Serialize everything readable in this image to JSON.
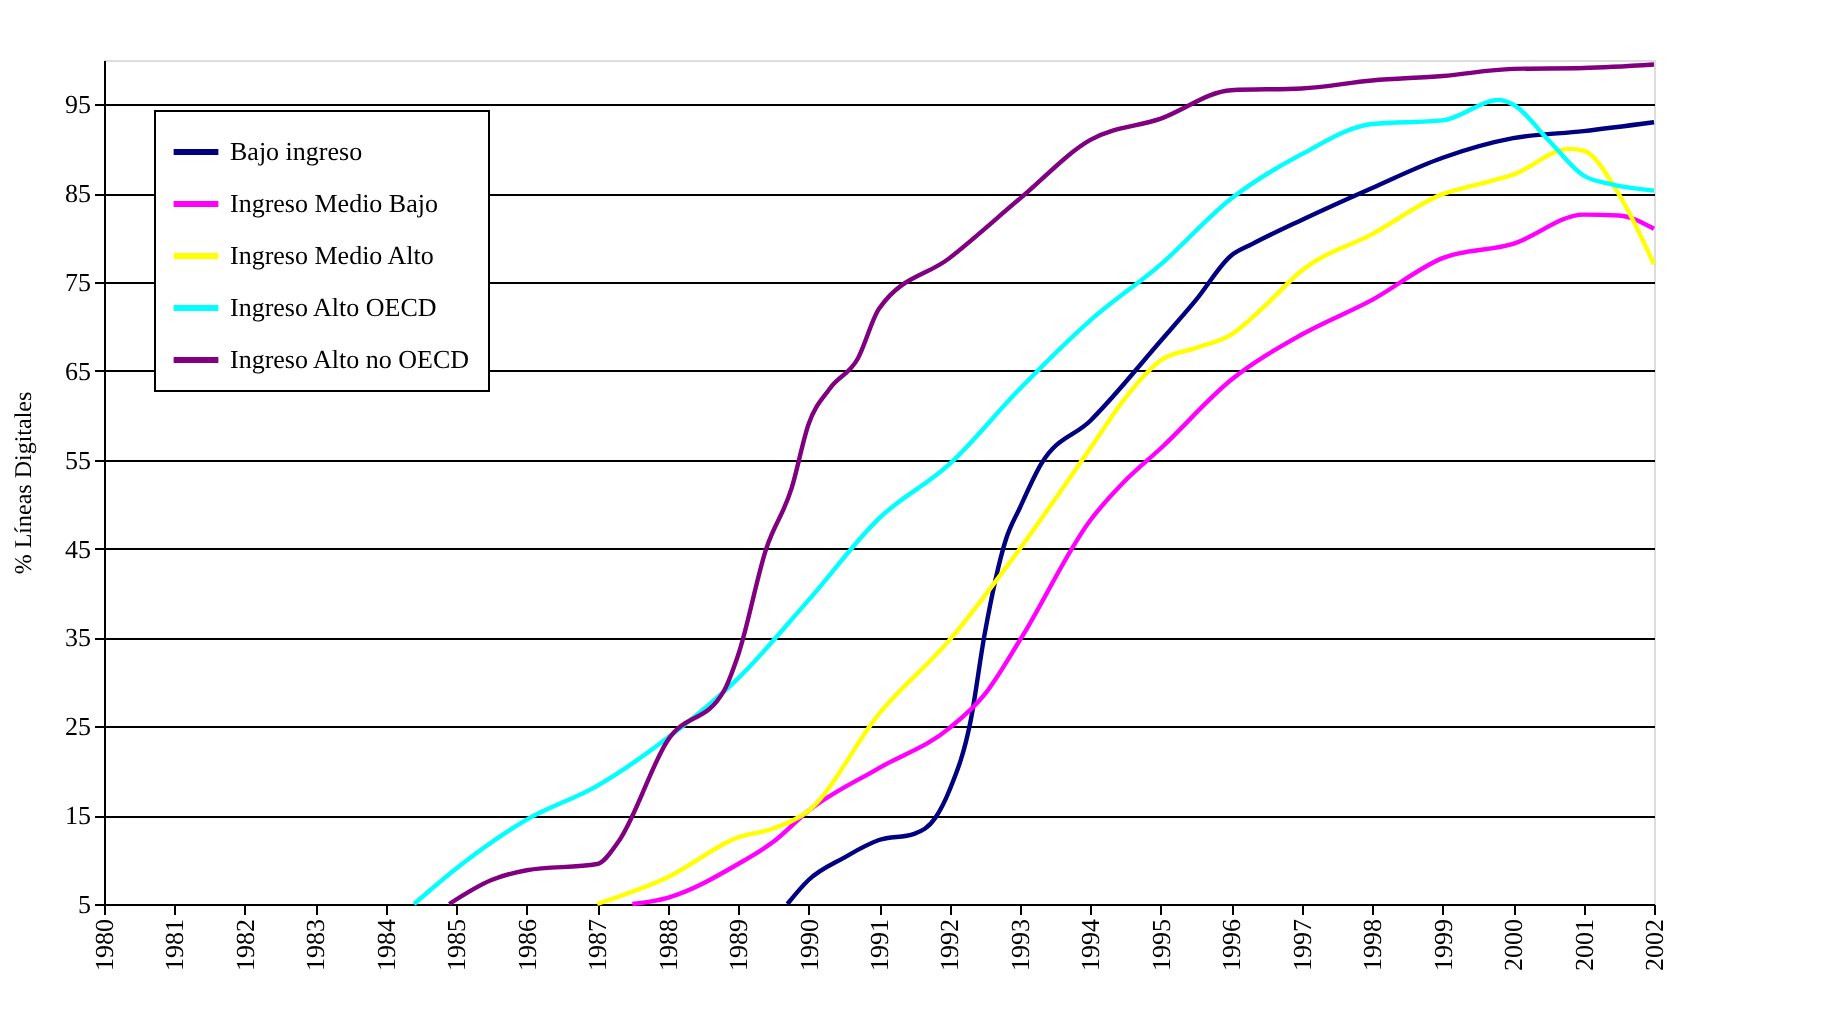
{
  "chart_data": {
    "type": "line",
    "ylabel": "% Líneas Digitales",
    "xlim": [
      1980,
      2002
    ],
    "xticks": [
      1980,
      1981,
      1982,
      1983,
      1984,
      1985,
      1986,
      1987,
      1988,
      1989,
      1990,
      1991,
      1992,
      1993,
      1994,
      1995,
      1996,
      1997,
      1998,
      1999,
      2000,
      2001,
      2002
    ],
    "ylim": [
      5,
      100
    ],
    "yticks": [
      5,
      15,
      25,
      35,
      45,
      55,
      65,
      75,
      85,
      95
    ],
    "grid": "y",
    "legend": "top left",
    "marker": "none",
    "line_style": "solid",
    "series": [
      {
        "name": "Bajo  ingreso",
        "color": "#000080",
        "x": [
          1989.7,
          1990,
          1990.5,
          1991,
          1991.5,
          1991.8,
          1992,
          1992.3,
          1992.5,
          1992.8,
          1993,
          1993.3,
          1994,
          1995,
          1995.5,
          1996,
          1996.3,
          1997,
          1998,
          1999,
          2000,
          2001,
          2002
        ],
        "values": [
          5,
          7.7,
          10.2,
          12.2,
          12.9,
          14.7,
          17.8,
          25.6,
          35.4,
          46,
          49.6,
          54.5,
          59.4,
          68.4,
          73,
          78,
          79.3,
          82,
          85.6,
          89,
          91.2,
          92,
          93
        ]
      },
      {
        "name": "Ingreso Medio Bajo",
        "color": "#ff00ff",
        "x": [
          1987.5,
          1988,
          1989,
          1989.5,
          1990,
          1991,
          1992,
          1992.5,
          1993,
          1994,
          1994.5,
          1995,
          1996,
          1997,
          1998,
          1999,
          2000,
          2001,
          2001.5,
          2002
        ],
        "values": [
          5,
          5.7,
          9.5,
          12,
          15.5,
          20.3,
          24.8,
          28.6,
          34.7,
          48.2,
          52.7,
          56.3,
          64,
          69.1,
          73,
          77.7,
          79.3,
          82.6,
          82.5,
          81
        ]
      },
      {
        "name": "Ingreso Medio Alto",
        "color": "#ffff00",
        "x": [
          1987,
          1988,
          1989,
          1989.5,
          1990,
          1991,
          1992,
          1993,
          1994,
          1994.5,
          1995,
          1995.5,
          1996,
          1996.5,
          1997,
          1998,
          1999,
          1999.5,
          2000,
          2000.8,
          2001,
          2001.5,
          2002
        ],
        "values": [
          5,
          8,
          12.5,
          13.5,
          15.5,
          26.4,
          34.7,
          45,
          56.3,
          62,
          66.2,
          67.6,
          69.1,
          72.5,
          76.3,
          80.4,
          84.9,
          86,
          87.1,
          90,
          89.8,
          84.9,
          77
        ]
      },
      {
        "name": "Ingreso Alto OECD",
        "color": "#00ffff",
        "x": [
          1984.4,
          1985,
          1986,
          1987,
          1988,
          1989,
          1990,
          1991,
          1992,
          1993,
          1994,
          1995,
          1996,
          1997,
          1998,
          1999,
          1999.8,
          2000,
          2000.5,
          2001,
          2001.4,
          2002
        ],
        "values": [
          5,
          9,
          14.5,
          18.3,
          23.7,
          30.4,
          39.2,
          48.4,
          54.5,
          63,
          70.7,
          77,
          84.4,
          89.4,
          92.8,
          93.2,
          95.5,
          95,
          91,
          87,
          86,
          85.3
        ]
      },
      {
        "name": "Ingreso Alto no OECD",
        "color": "#800080",
        "x": [
          1984.9,
          1985.5,
          1986,
          1987,
          1987.3,
          1988,
          1988.8,
          1989,
          1989.4,
          1989.76,
          1990,
          1990.3,
          1990.7,
          1991,
          1992,
          1993,
          1994,
          1995,
          1996,
          1997,
          1998,
          1999,
          2000,
          2001,
          2002
        ],
        "values": [
          5,
          7.7,
          8.8,
          9.5,
          12,
          23.4,
          29,
          33,
          45,
          51.8,
          59,
          63,
          66.4,
          72,
          77.7,
          84.4,
          91,
          93.4,
          96.6,
          96.8,
          97.7,
          98.2,
          99,
          99.1,
          99.5
        ]
      }
    ]
  }
}
